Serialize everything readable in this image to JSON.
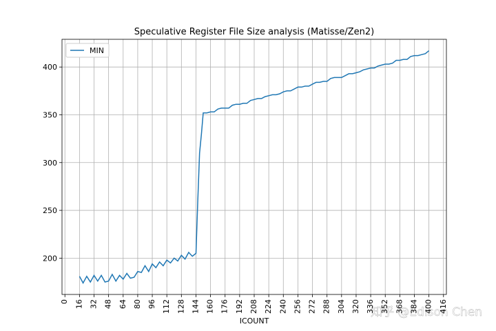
{
  "chart_data": {
    "type": "line",
    "title": "Speculative Register File Size analysis (Matisse/Zen2)",
    "x_label": "ICOUNT",
    "x": [
      16,
      20,
      24,
      28,
      32,
      36,
      40,
      44,
      48,
      52,
      56,
      60,
      64,
      68,
      72,
      76,
      80,
      84,
      88,
      92,
      96,
      100,
      104,
      108,
      112,
      116,
      120,
      124,
      128,
      132,
      136,
      140,
      144,
      146,
      148,
      150,
      152,
      156,
      160,
      164,
      168,
      172,
      176,
      180,
      184,
      188,
      192,
      196,
      200,
      204,
      208,
      212,
      216,
      220,
      224,
      228,
      232,
      236,
      240,
      244,
      248,
      252,
      256,
      260,
      264,
      268,
      272,
      276,
      280,
      284,
      288,
      292,
      296,
      300,
      304,
      308,
      312,
      316,
      320,
      324,
      328,
      332,
      336,
      340,
      344,
      348,
      352,
      356,
      360,
      364,
      368,
      372,
      376,
      380,
      384,
      388,
      392,
      396,
      400
    ],
    "series": [
      {
        "name": "MIN",
        "color": "#1f77b4",
        "values": [
          181,
          174,
          181,
          175,
          182,
          176,
          182,
          175,
          176,
          183,
          176,
          182,
          178,
          184,
          179,
          180,
          186,
          185,
          192,
          186,
          194,
          190,
          196,
          192,
          198,
          195,
          200,
          197,
          203,
          199,
          206,
          202,
          205,
          260,
          310,
          330,
          352,
          352,
          353,
          353,
          356,
          357,
          357,
          357,
          360,
          361,
          361,
          362,
          362,
          365,
          366,
          367,
          367,
          369,
          370,
          371,
          371,
          372,
          374,
          375,
          375,
          377,
          379,
          379,
          380,
          380,
          382,
          384,
          384,
          385,
          385,
          388,
          389,
          389,
          389,
          391,
          393,
          393,
          394,
          395,
          397,
          398,
          399,
          399,
          401,
          402,
          403,
          403,
          404,
          407,
          407,
          408,
          408,
          411,
          412,
          412,
          413,
          414,
          417
        ]
      }
    ],
    "xlim": [
      -3.2,
      419.2
    ],
    "xticks": [
      0,
      16,
      32,
      48,
      64,
      80,
      96,
      112,
      128,
      144,
      160,
      176,
      192,
      208,
      224,
      240,
      256,
      272,
      288,
      304,
      320,
      336,
      352,
      368,
      384,
      400,
      416
    ],
    "ylim": [
      162,
      429
    ],
    "yticks": [
      200,
      250,
      300,
      350,
      400
    ],
    "grid": true,
    "legend": "upper left"
  },
  "watermark": "知乎 @Edison Chen"
}
